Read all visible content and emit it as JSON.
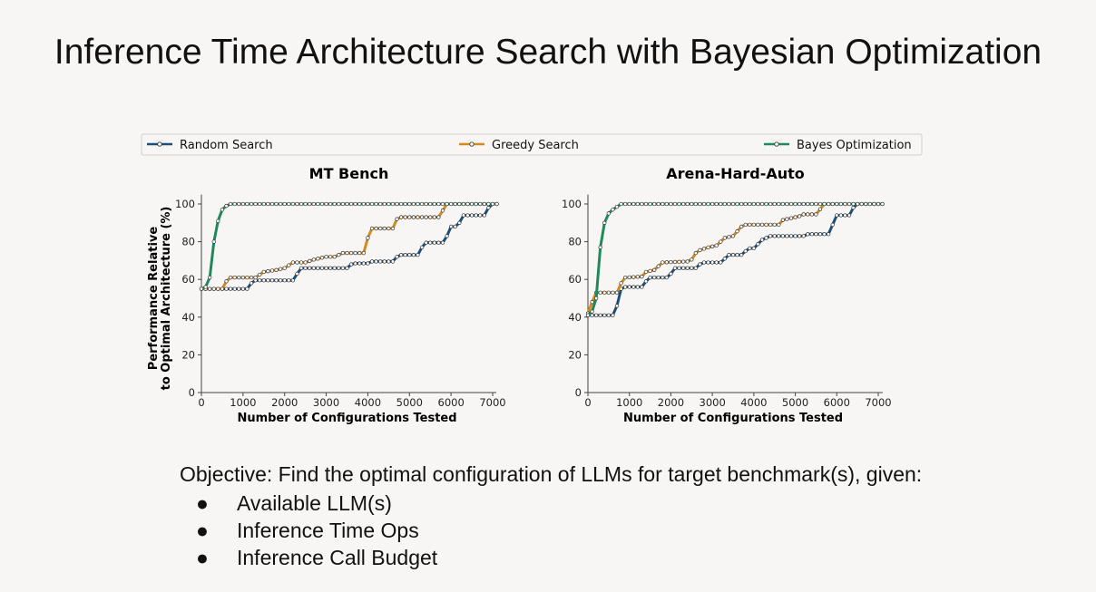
{
  "slide": {
    "title": "Inference Time Architecture Search with Bayesian Optimization",
    "objective": "Objective: Find the optimal configuration of LLMs for target benchmark(s), given:",
    "bullets": [
      "Available LLM(s)",
      "Inference Time Ops",
      "Inference Call Budget"
    ]
  },
  "legend": {
    "position": "top",
    "entries": [
      {
        "name": "Random Search",
        "color": "#1b4f7a"
      },
      {
        "name": "Greedy Search",
        "color": "#d08a1e"
      },
      {
        "name": "Bayes Optimization",
        "color": "#1e8a5c"
      }
    ]
  },
  "chart_data": [
    {
      "type": "line",
      "title": "MT Bench",
      "xlabel": "Number of Configurations Tested",
      "ylabel": "Performance Relative\nto Optimal Architecture (%)",
      "ylabel_lines": [
        "Performance Relative",
        "to Optimal Architecture (%)"
      ],
      "xlim": [
        0,
        7100
      ],
      "ylim": [
        0,
        105
      ],
      "xticks": [
        0,
        1000,
        2000,
        3000,
        4000,
        5000,
        6000,
        7000
      ],
      "yticks": [
        0,
        20,
        40,
        60,
        80,
        100
      ],
      "series": [
        {
          "name": "Random Search",
          "points": [
            [
              0,
              55
            ],
            [
              1100,
              55
            ],
            [
              1200,
              58
            ],
            [
              1300,
              59.5
            ],
            [
              2200,
              59.5
            ],
            [
              2300,
              63
            ],
            [
              2400,
              66
            ],
            [
              3500,
              66
            ],
            [
              3600,
              68
            ],
            [
              3700,
              68.5
            ],
            [
              4000,
              68.5
            ],
            [
              4100,
              69.5
            ],
            [
              4600,
              69.5
            ],
            [
              4700,
              72
            ],
            [
              4800,
              73
            ],
            [
              5200,
              73
            ],
            [
              5300,
              77
            ],
            [
              5400,
              79.5
            ],
            [
              5800,
              79.5
            ],
            [
              5900,
              83
            ],
            [
              6000,
              88
            ],
            [
              6100,
              88
            ],
            [
              6200,
              90
            ],
            [
              6300,
              94
            ],
            [
              6800,
              94
            ],
            [
              6900,
              98
            ],
            [
              7000,
              100
            ],
            [
              7100,
              100
            ]
          ]
        },
        {
          "name": "Greedy Search",
          "points": [
            [
              0,
              55
            ],
            [
              500,
              55
            ],
            [
              600,
              59
            ],
            [
              700,
              61
            ],
            [
              1300,
              61
            ],
            [
              1500,
              64
            ],
            [
              1800,
              65
            ],
            [
              2000,
              66
            ],
            [
              2200,
              69
            ],
            [
              2500,
              69
            ],
            [
              2700,
              70.5
            ],
            [
              3000,
              72
            ],
            [
              3200,
              72
            ],
            [
              3400,
              74
            ],
            [
              3900,
              74
            ],
            [
              4000,
              82
            ],
            [
              4100,
              87
            ],
            [
              4600,
              87
            ],
            [
              4700,
              92
            ],
            [
              4800,
              93
            ],
            [
              5700,
              93
            ],
            [
              5900,
              100
            ],
            [
              7100,
              100
            ]
          ]
        },
        {
          "name": "Bayes Optimization",
          "points": [
            [
              0,
              55
            ],
            [
              100,
              56
            ],
            [
              200,
              61
            ],
            [
              300,
              80
            ],
            [
              400,
              91
            ],
            [
              500,
              97
            ],
            [
              600,
              99
            ],
            [
              700,
              100
            ],
            [
              7100,
              100
            ]
          ]
        }
      ]
    },
    {
      "type": "line",
      "title": "Arena-Hard-Auto",
      "xlabel": "Number of Configurations Tested",
      "ylabel": "",
      "xlim": [
        0,
        7100
      ],
      "ylim": [
        0,
        105
      ],
      "xticks": [
        0,
        1000,
        2000,
        3000,
        4000,
        5000,
        6000,
        7000
      ],
      "yticks": [
        0,
        20,
        40,
        60,
        80,
        100
      ],
      "series": [
        {
          "name": "Random Search",
          "points": [
            [
              0,
              41
            ],
            [
              600,
              41
            ],
            [
              700,
              46
            ],
            [
              800,
              55
            ],
            [
              900,
              56
            ],
            [
              1300,
              56
            ],
            [
              1400,
              59
            ],
            [
              1500,
              61
            ],
            [
              1900,
              61
            ],
            [
              2000,
              63
            ],
            [
              2100,
              66
            ],
            [
              2600,
              66
            ],
            [
              2700,
              68
            ],
            [
              2800,
              69
            ],
            [
              3200,
              69
            ],
            [
              3300,
              71
            ],
            [
              3400,
              73
            ],
            [
              3700,
              73
            ],
            [
              3800,
              75
            ],
            [
              3900,
              76.5
            ],
            [
              4000,
              76.5
            ],
            [
              4200,
              81
            ],
            [
              4400,
              83
            ],
            [
              5200,
              83
            ],
            [
              5300,
              84
            ],
            [
              5800,
              84
            ],
            [
              5900,
              89
            ],
            [
              6000,
              94
            ],
            [
              6300,
              94
            ],
            [
              6400,
              98
            ],
            [
              6500,
              100
            ],
            [
              7100,
              100
            ]
          ]
        },
        {
          "name": "Greedy Search",
          "points": [
            [
              0,
              42
            ],
            [
              100,
              48
            ],
            [
              200,
              53
            ],
            [
              700,
              53
            ],
            [
              800,
              58
            ],
            [
              900,
              61
            ],
            [
              1300,
              61.5
            ],
            [
              1400,
              64
            ],
            [
              1600,
              65
            ],
            [
              1800,
              69
            ],
            [
              2400,
              69.5
            ],
            [
              2500,
              70.5
            ],
            [
              2600,
              74
            ],
            [
              2700,
              75.5
            ],
            [
              2900,
              77
            ],
            [
              3100,
              78
            ],
            [
              3300,
              82
            ],
            [
              3500,
              83
            ],
            [
              3700,
              88
            ],
            [
              3800,
              89
            ],
            [
              4600,
              89
            ],
            [
              4700,
              91.5
            ],
            [
              4900,
              92.5
            ],
            [
              5100,
              93.5
            ],
            [
              5200,
              94.5
            ],
            [
              5500,
              94.5
            ],
            [
              5700,
              100
            ],
            [
              7100,
              100
            ]
          ]
        },
        {
          "name": "Bayes Optimization",
          "points": [
            [
              0,
              41
            ],
            [
              100,
              43
            ],
            [
              200,
              50
            ],
            [
              300,
              77
            ],
            [
              400,
              90
            ],
            [
              500,
              95
            ],
            [
              600,
              97
            ],
            [
              700,
              98.5
            ],
            [
              800,
              100
            ],
            [
              7100,
              100
            ]
          ]
        }
      ]
    }
  ]
}
